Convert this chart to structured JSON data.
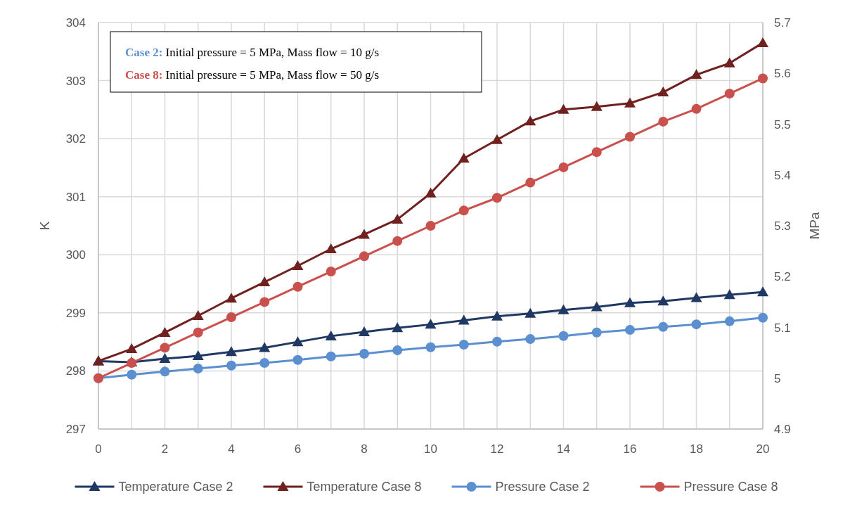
{
  "chart_data": {
    "type": "line",
    "xlabel": null,
    "ylabel": "K",
    "y2label": "MPa",
    "x": [
      0,
      1,
      2,
      3,
      4,
      5,
      6,
      7,
      8,
      9,
      10,
      11,
      12,
      13,
      14,
      15,
      16,
      17,
      18,
      19,
      20
    ],
    "xlim": [
      0,
      20
    ],
    "xticks": [
      0,
      2,
      4,
      6,
      8,
      10,
      12,
      14,
      16,
      18,
      20
    ],
    "ylim": [
      297,
      304
    ],
    "yticks": [
      297,
      298,
      299,
      300,
      301,
      302,
      303,
      304
    ],
    "y2lim": [
      4.9,
      5.7
    ],
    "y2ticks": [
      {
        "value": 4.9,
        "label": "4.9"
      },
      {
        "value": 5,
        "label": "5"
      },
      {
        "value": 5.1,
        "label": "5.1"
      },
      {
        "value": 5.2,
        "label": "5.2"
      },
      {
        "value": 5.3,
        "label": "5.3"
      },
      {
        "value": 5.4,
        "label": "5.4"
      },
      {
        "value": 5.5,
        "label": "5.5"
      },
      {
        "value": 5.6,
        "label": "5.6"
      },
      {
        "value": 5.7,
        "label": "5.7"
      }
    ],
    "grid": true,
    "legend": "bottom",
    "line_style": "solid",
    "annotations": [
      "Case 2: Initial pressure = 5 MPa, Mass flow = 10 g/s",
      "Case 8: Initial pressure = 5 MPa, Mass flow = 50 g/s"
    ],
    "series": [
      {
        "name": "Temperature Case 2",
        "color": "#203864",
        "marker": "triangle",
        "values": [
          298.17,
          298.15,
          298.21,
          298.26,
          298.33,
          298.4,
          298.5,
          298.6,
          298.67,
          298.74,
          298.8,
          298.87,
          298.94,
          298.99,
          299.05,
          299.1,
          299.17,
          299.2,
          299.26,
          299.31,
          299.36
        ]
      },
      {
        "name": "Temperature Case 8",
        "color": "#70211f",
        "marker": "triangle",
        "values": [
          298.17,
          298.38,
          298.66,
          298.95,
          299.25,
          299.53,
          299.81,
          300.1,
          300.35,
          300.61,
          301.06,
          301.66,
          301.98,
          302.3,
          302.5,
          302.55,
          302.61,
          302.8,
          303.1,
          303.3,
          303.65
        ]
      },
      {
        "name": "Pressure Case 2",
        "color": "#5b8fcf",
        "marker": "circle",
        "axis": "y2",
        "values": [
          5.0,
          5.007,
          5.013,
          5.019,
          5.025,
          5.03,
          5.036,
          5.043,
          5.048,
          5.055,
          5.061,
          5.066,
          5.072,
          5.077,
          5.083,
          5.09,
          5.095,
          5.101,
          5.106,
          5.112,
          5.119
        ]
      },
      {
        "name": "Pressure Case 8",
        "color": "#c9504d",
        "marker": "circle",
        "axis": "y2",
        "values": [
          5.0,
          5.03,
          5.06,
          5.09,
          5.12,
          5.15,
          5.18,
          5.21,
          5.24,
          5.27,
          5.3,
          5.33,
          5.355,
          5.385,
          5.415,
          5.445,
          5.475,
          5.505,
          5.53,
          5.56,
          5.59
        ]
      }
    ]
  }
}
